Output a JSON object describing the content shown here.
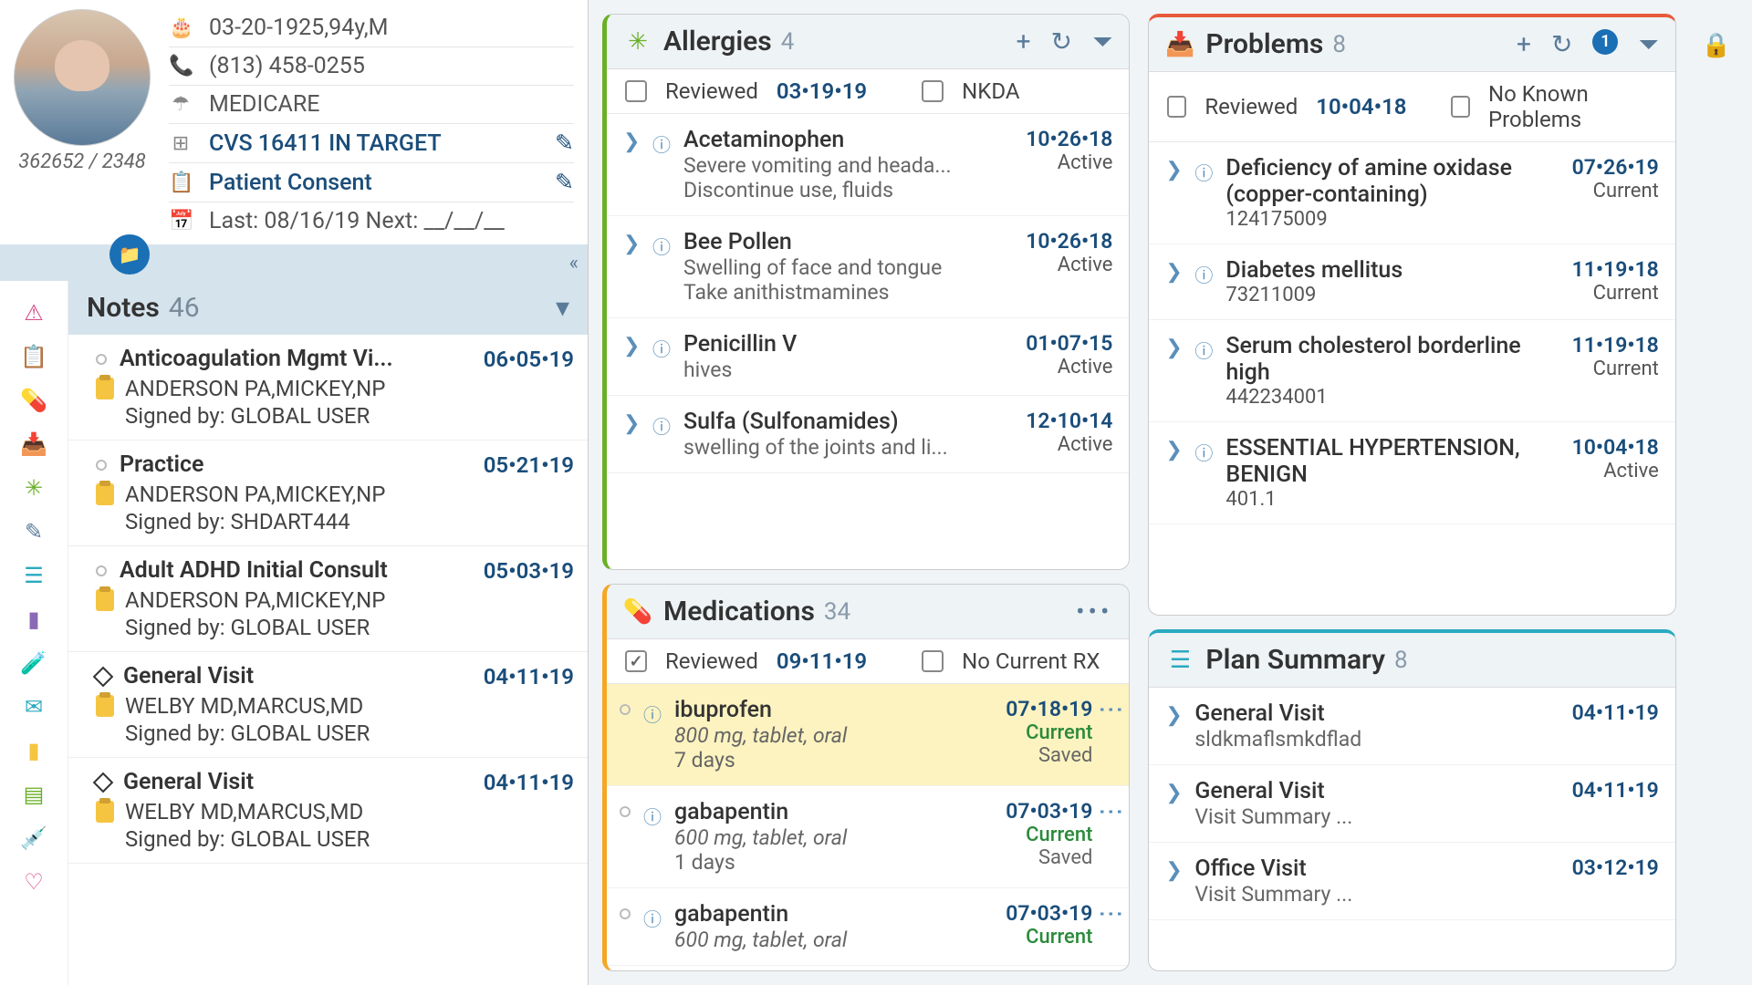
{
  "patient": {
    "id": "362652 / 2348",
    "dob_line": "03-20-1925,94y,M",
    "phone": "(813) 458-0255",
    "insurance": "MEDICARE",
    "pharmacy": "CVS 16411 IN TARGET",
    "consent": "Patient Consent",
    "visits": "Last: 08/16/19 Next: __/__/__"
  },
  "notes": {
    "title": "Notes",
    "count": "46",
    "items": [
      {
        "title": "Anticoagulation Mgmt Vi...",
        "date": "06•05•19",
        "provider": "ANDERSON PA,MICKEY,NP",
        "signed": "Signed by: GLOBAL USER",
        "shape": "dot"
      },
      {
        "title": "Practice",
        "date": "05•21•19",
        "provider": "ANDERSON PA,MICKEY,NP",
        "signed": "Signed by: SHDART444",
        "shape": "dot"
      },
      {
        "title": "Adult ADHD Initial Consult",
        "date": "05•03•19",
        "provider": "ANDERSON PA,MICKEY,NP",
        "signed": "Signed by: GLOBAL USER",
        "shape": "dot"
      },
      {
        "title": "General Visit",
        "date": "04•11•19",
        "provider": "WELBY MD,MARCUS,MD",
        "signed": "Signed by: GLOBAL USER",
        "shape": "diamond"
      },
      {
        "title": "General Visit",
        "date": "04•11•19",
        "provider": "WELBY MD,MARCUS,MD",
        "signed": "Signed by: GLOBAL USER",
        "shape": "diamond"
      }
    ]
  },
  "allergies": {
    "title": "Allergies",
    "count": "4",
    "reviewed_label": "Reviewed",
    "reviewed_date": "03•19•19",
    "nkda": "NKDA",
    "items": [
      {
        "name": "Acetaminophen",
        "desc": "Severe vomiting and heada...",
        "note": "Discontinue use, fluids",
        "date": "10•26•18",
        "status": "Active"
      },
      {
        "name": "Bee Pollen",
        "desc": "Swelling of face and tongue",
        "note": "Take anithistmamines",
        "date": "10•26•18",
        "status": "Active"
      },
      {
        "name": "Penicillin V",
        "desc": "hives",
        "note": "",
        "date": "01•07•15",
        "status": "Active"
      },
      {
        "name": "Sulfa (Sulfonamides)",
        "desc": "swelling of the joints and li...",
        "note": "",
        "date": "12•10•14",
        "status": "Active"
      }
    ]
  },
  "medications": {
    "title": "Medications",
    "count": "34",
    "reviewed_label": "Reviewed",
    "reviewed_date": "09•11•19",
    "norx": "No Current RX",
    "items": [
      {
        "name": "ibuprofen",
        "dose": "800 mg, tablet, oral",
        "dur": "7 days",
        "date": "07•18•19",
        "status": "Current",
        "saved": "Saved",
        "hl": true
      },
      {
        "name": "gabapentin",
        "dose": "600 mg, tablet, oral",
        "dur": "1 days",
        "date": "07•03•19",
        "status": "Current",
        "saved": "Saved",
        "hl": false
      },
      {
        "name": "gabapentin",
        "dose": "600 mg, tablet, oral",
        "dur": "",
        "date": "07•03•19",
        "status": "Current",
        "saved": "",
        "hl": false
      }
    ]
  },
  "problems": {
    "title": "Problems",
    "count": "8",
    "badge": "1",
    "reviewed_label": "Reviewed",
    "reviewed_date": "10•04•18",
    "none": "No Known Problems",
    "items": [
      {
        "name": "Deficiency of amine oxidase (copper-containing)",
        "code": "124175009",
        "date": "07•26•19",
        "status": "Current"
      },
      {
        "name": "Diabetes mellitus",
        "code": "73211009",
        "date": "11•19•18",
        "status": "Current"
      },
      {
        "name": "Serum cholesterol borderline high",
        "code": "442234001",
        "date": "11•19•18",
        "status": "Current"
      },
      {
        "name": "ESSENTIAL HYPERTENSION, BENIGN",
        "code": "401.1",
        "date": "10•04•18",
        "status": "Active"
      }
    ]
  },
  "plan": {
    "title": "Plan Summary",
    "count": "8",
    "items": [
      {
        "name": "General Visit",
        "desc": "sldkmaflsmkdflad",
        "date": "04•11•19"
      },
      {
        "name": "General Visit",
        "desc": "Visit Summary  ...",
        "date": "04•11•19"
      },
      {
        "name": "Office Visit",
        "desc": "Visit Summary  ...",
        "date": "03•12•19"
      }
    ]
  },
  "colors": {
    "allergies": "#6ab025",
    "meds": "#f5a623",
    "problems": "#e85a3a",
    "plan": "#2aaac0",
    "link": "#1a4d7a",
    "highlight": "#fdf3c0"
  }
}
